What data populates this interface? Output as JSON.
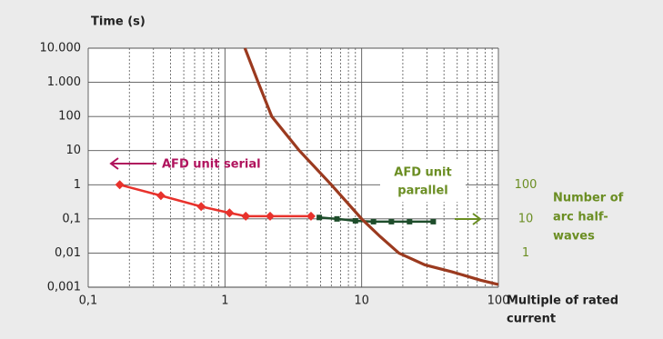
{
  "chart_data": {
    "type": "line",
    "y_label": "Time (s)",
    "x_label": [
      "Multiple of rated",
      "current"
    ],
    "y2_label": [
      "Number of",
      "arc half-",
      "waves"
    ],
    "annotations": {
      "serial": "AFD unit serial",
      "parallel": [
        "AFD unit",
        "parallel"
      ]
    },
    "log_x": true,
    "log_y": true,
    "grid": true,
    "xlim": [
      0.1,
      100
    ],
    "xticks": [
      {
        "value": 0.1,
        "label": "0,1"
      },
      1,
      10,
      100
    ],
    "ylim": [
      0.001,
      10000
    ],
    "yticks": [
      {
        "value": 0.001,
        "label": "0,001"
      },
      {
        "value": 0.01,
        "label": "0,01"
      },
      {
        "value": 0.1,
        "label": "0,1"
      },
      1,
      10,
      100,
      {
        "value": 1000,
        "label": "1.000"
      },
      {
        "value": 10000,
        "label": "10.000"
      }
    ],
    "y2lim": [
      0.1,
      1000000
    ],
    "y2ticks": [
      1,
      10,
      100
    ],
    "series": [
      {
        "name": "AFD unit serial",
        "color": "#e8322c",
        "marker": "diamond",
        "x": [
          0.17,
          0.34,
          0.67,
          1.08,
          1.42,
          2.14,
          4.26
        ],
        "values": [
          1,
          0.48,
          0.23,
          0.15,
          0.12,
          0.12,
          0.12
        ]
      },
      {
        "color": "#1e4d2b",
        "marker": "square",
        "axis": "y2",
        "x": [
          4.9,
          6.6,
          9.0,
          12.2,
          16.5,
          22.4,
          33.4
        ],
        "values": [
          11,
          10,
          8.8,
          8.3,
          8.3,
          8.3,
          8.3
        ]
      },
      {
        "color": "#9b3a1f",
        "x": [
          1.4,
          1.75,
          2.2,
          3.5,
          6,
          10,
          13.7,
          18.7,
          29,
          46,
          74,
          100
        ],
        "values": [
          10000,
          1000,
          100,
          10,
          1,
          0.1,
          0.03,
          0.01,
          0.0045,
          0.0028,
          0.0016,
          0.0012
        ]
      }
    ]
  }
}
